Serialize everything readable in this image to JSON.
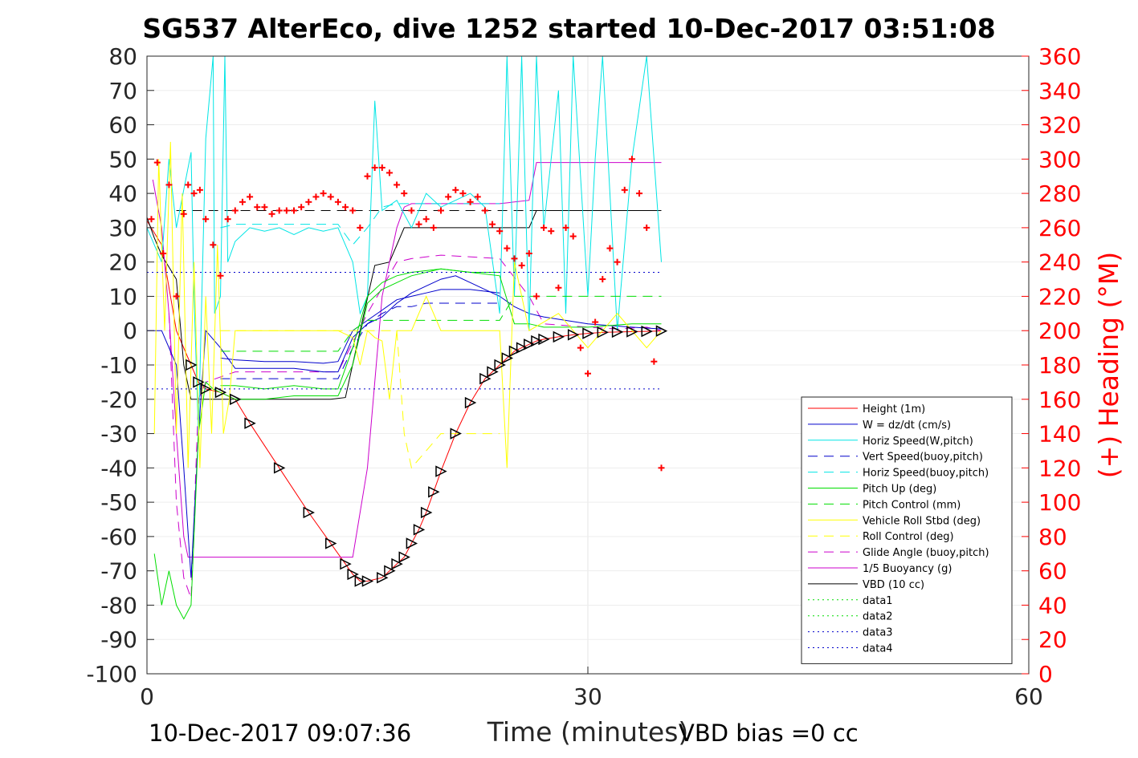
{
  "title": "SG537 AlterEco, dive 1252 started 10-Dec-2017 03:51:08",
  "footer": {
    "left_timestamp": "10-Dec-2017 09:07:36",
    "vbd_bias": "VBD bias =0 cc"
  },
  "chart_data": {
    "type": "line",
    "xlabel": "Time (minutes)",
    "ylabel": "",
    "y2label": "(+) Heading (°M)",
    "xlim": [
      0,
      60
    ],
    "ylim": [
      -100,
      80
    ],
    "y2lim": [
      0,
      360
    ],
    "x_ticks": [
      "0",
      "30",
      "60"
    ],
    "y_ticks": [
      "80",
      "70",
      "60",
      "50",
      "40",
      "30",
      "20",
      "10",
      "0",
      "-10",
      "-20",
      "-30",
      "-40",
      "-50",
      "-60",
      "-70",
      "-80",
      "-90",
      "-100"
    ],
    "y2_ticks": [
      "360",
      "340",
      "320",
      "300",
      "280",
      "260",
      "240",
      "220",
      "200",
      "180",
      "160",
      "140",
      "120",
      "100",
      "80",
      "60",
      "40",
      "20",
      "0"
    ],
    "grid": true,
    "legend_position": "lower-right",
    "colors": {
      "height": "#ff0000",
      "w": "#0000cc",
      "horiz_speed": "#00e5e5",
      "pitch": "#00dd00",
      "roll": "#ffff00",
      "glide": "#cc00cc",
      "vbd": "#000000",
      "heading": "#ff0000"
    },
    "legend": [
      {
        "label": "Height (1m)",
        "color": "#ff0000",
        "dash": "solid"
      },
      {
        "label": "W = dz/dt (cm/s)",
        "color": "#0000cc",
        "dash": "solid"
      },
      {
        "label": "Horiz Speed(W,pitch)",
        "color": "#00e5e5",
        "dash": "solid"
      },
      {
        "label": "Vert Speed(buoy,pitch)",
        "color": "#0000cc",
        "dash": "dashed"
      },
      {
        "label": "Horiz Speed(buoy,pitch)",
        "color": "#00e5e5",
        "dash": "dashed"
      },
      {
        "label": "Pitch Up (deg)",
        "color": "#00dd00",
        "dash": "solid"
      },
      {
        "label": "Pitch Control (mm)",
        "color": "#00dd00",
        "dash": "dashed"
      },
      {
        "label": "Vehicle Roll Stbd (deg)",
        "color": "#ffff00",
        "dash": "solid"
      },
      {
        "label": "Roll Control (deg)",
        "color": "#ffff00",
        "dash": "dashed"
      },
      {
        "label": "Glide Angle (buoy,pitch)",
        "color": "#cc00cc",
        "dash": "dashed"
      },
      {
        "label": "1/5 Buoyancy (g)",
        "color": "#cc00cc",
        "dash": "solid"
      },
      {
        "label": "VBD (10 cc)",
        "color": "#000000",
        "dash": "solid"
      },
      {
        "label": "data1",
        "color": "#00dd00",
        "dash": "dotted"
      },
      {
        "label": "data2",
        "color": "#00dd00",
        "dash": "dotted"
      },
      {
        "label": "data3",
        "color": "#0000cc",
        "dash": "dotted"
      },
      {
        "label": "data4",
        "color": "#0000cc",
        "dash": "dotted"
      }
    ],
    "series": [
      {
        "key": "height",
        "color": "#ff0000",
        "dash": "solid",
        "width": 1,
        "x": [
          0,
          1,
          2,
          3,
          3.5,
          4,
          5,
          6,
          7,
          9,
          11,
          12.5,
          13.5,
          14,
          14.5,
          15,
          16,
          16.5,
          17,
          17.5,
          18,
          18.5,
          19,
          19.5,
          20,
          21,
          22,
          23,
          23.5,
          24,
          24.5,
          25,
          25.5,
          26,
          26.5,
          27,
          28,
          29,
          30,
          31,
          32,
          33,
          34,
          35
        ],
        "y": [
          32,
          25,
          0,
          -10,
          -15,
          -17,
          -18,
          -20,
          -27,
          -40,
          -53,
          -62,
          -68,
          -71,
          -73,
          -73,
          -72,
          -70,
          -68,
          -66,
          -62,
          -58,
          -53,
          -47,
          -41,
          -30,
          -21,
          -14,
          -12,
          -10,
          -8,
          -6,
          -5,
          -4,
          -3,
          -2.5,
          -1.8,
          -1.2,
          -0.8,
          -0.5,
          -0.4,
          -0.3,
          -0.2,
          -0.1
        ]
      },
      {
        "key": "vbd",
        "color": "#000000",
        "dash": "solid",
        "width": 1,
        "x": [
          0,
          0.5,
          1,
          2,
          2.5,
          3,
          7,
          12.5,
          13.5,
          14.5,
          15.5,
          16.5,
          17.5,
          20,
          24,
          26,
          26.5,
          30,
          35
        ],
        "y": [
          33,
          27,
          22,
          15,
          -10,
          -20,
          -20,
          -20,
          -19.5,
          0,
          19,
          20,
          30,
          30,
          30,
          30,
          35,
          35,
          35
        ]
      },
      {
        "key": "vbd_dashed",
        "color": "#000000",
        "dash": "dashed",
        "width": 1,
        "x": [
          2,
          35
        ],
        "y": [
          35,
          35
        ]
      },
      {
        "key": "buoyancy",
        "color": "#cc00cc",
        "dash": "solid",
        "width": 1,
        "x": [
          0.4,
          1,
          1.5,
          2,
          2.5,
          2.8,
          3,
          7,
          13,
          14,
          15,
          16,
          17,
          17.5,
          18,
          24,
          26,
          26.5,
          27,
          30,
          35
        ],
        "y": [
          44,
          30,
          5,
          -30,
          -60,
          -66,
          -66,
          -66,
          -66,
          -66,
          -40,
          10,
          30,
          36,
          37,
          37,
          38,
          49,
          49,
          49,
          49
        ]
      },
      {
        "key": "glide_angle",
        "color": "#cc00cc",
        "dash": "dashed",
        "width": 1,
        "x": [
          1.5,
          2,
          2.5,
          3,
          3.5,
          4,
          6,
          12,
          13,
          15,
          17,
          18,
          20,
          24,
          26,
          27,
          30,
          32,
          34,
          35
        ],
        "y": [
          5,
          -50,
          -72,
          -78,
          -20,
          -15,
          -12,
          -12,
          -12,
          5,
          20,
          21,
          22,
          21,
          10,
          2,
          1,
          0.5,
          1,
          0
        ]
      },
      {
        "key": "w",
        "color": "#0000cc",
        "dash": "solid",
        "width": 1,
        "x": [
          0,
          1,
          2,
          2.5,
          3,
          3.5,
          4,
          5,
          6,
          8,
          10,
          12,
          13,
          14,
          15,
          16,
          17,
          18,
          19,
          20,
          21,
          22,
          23,
          24,
          25,
          26,
          27,
          30,
          33,
          35
        ],
        "y": [
          0,
          0,
          -10,
          -40,
          -72,
          -30,
          0,
          -5,
          -11,
          -11,
          -11,
          -12,
          -12,
          -2,
          2,
          4,
          8,
          11,
          13,
          15,
          16,
          14,
          12,
          10,
          7,
          5,
          4,
          2,
          1,
          0.5
        ]
      },
      {
        "key": "w_b",
        "color": "#0000cc",
        "dash": "solid",
        "width": 1,
        "x": [
          5,
          6,
          8,
          10,
          12,
          13,
          14,
          15,
          16,
          17,
          18,
          19,
          20,
          22,
          24
        ],
        "y": [
          -8,
          -8.5,
          -9,
          -9,
          -9.5,
          -9,
          0,
          3,
          6,
          9,
          10,
          11,
          12,
          12,
          11
        ]
      },
      {
        "key": "vert_speed_buoy",
        "color": "#0000cc",
        "dash": "dashed",
        "width": 1,
        "x": [
          5,
          6,
          8,
          10,
          12,
          13,
          14,
          15,
          16,
          17,
          18,
          19,
          20,
          22,
          24
        ],
        "y": [
          -14,
          -14,
          -14,
          -14,
          -14,
          -14,
          -5,
          2,
          5,
          7,
          7,
          8,
          8,
          8,
          8
        ]
      },
      {
        "key": "horiz_speed",
        "color": "#00e5e5",
        "dash": "solid",
        "width": 1,
        "x": [
          0,
          1,
          1.5,
          2,
          3,
          3.2,
          3.5,
          4,
          4.5,
          4.6,
          5,
          5.3,
          5.5,
          6,
          7,
          8,
          9,
          10,
          11,
          12,
          13,
          14,
          14.5,
          15,
          15.5,
          16,
          17,
          18,
          19,
          20,
          21,
          22,
          23,
          24,
          24.5,
          25,
          25.5,
          26,
          26.5,
          27,
          28,
          28.5,
          29,
          30,
          30.5,
          31,
          32,
          33,
          34,
          35
        ],
        "y": [
          30,
          20,
          50,
          30,
          52,
          10,
          -30,
          56,
          80,
          5,
          10,
          80,
          20,
          26,
          30,
          29,
          30,
          28,
          30,
          29,
          30,
          20,
          5,
          10,
          67,
          35,
          38,
          30,
          40,
          36,
          38,
          40,
          36,
          5,
          80,
          10,
          80,
          0,
          80,
          30,
          70,
          5,
          80,
          10,
          50,
          80,
          0,
          50,
          80,
          20
        ]
      },
      {
        "key": "horiz_speed_buoy",
        "color": "#00e5e5",
        "dash": "dashed",
        "width": 1,
        "x": [
          5,
          6,
          8,
          10,
          12,
          13,
          14,
          15,
          16,
          17,
          18,
          20,
          22,
          24
        ],
        "y": [
          30,
          31,
          31,
          31,
          31,
          31,
          25,
          30,
          36,
          37,
          37,
          37,
          37,
          37
        ]
      },
      {
        "key": "pitch_up",
        "color": "#00dd00",
        "dash": "solid",
        "width": 1,
        "x": [
          0.5,
          1,
          1.5,
          2,
          2.5,
          3,
          3.5,
          4,
          4.5,
          5,
          6,
          8,
          10,
          12,
          13,
          14,
          15,
          16,
          17,
          18,
          20,
          22,
          24,
          25,
          26,
          27,
          30,
          33,
          35
        ],
        "y": [
          -65,
          -80,
          -70,
          -80,
          -84,
          -80,
          -30,
          -15,
          -17,
          -18,
          -20,
          -20,
          -19,
          -19,
          -19,
          -10,
          8,
          12,
          14,
          16,
          18,
          17,
          16,
          2,
          2,
          1,
          1,
          2,
          2
        ]
      },
      {
        "key": "pitch_up_b",
        "color": "#00dd00",
        "dash": "solid",
        "width": 1,
        "x": [
          5,
          6,
          8,
          10,
          12,
          13,
          14,
          15,
          16,
          17,
          18,
          20,
          22,
          24
        ],
        "y": [
          -16,
          -16,
          -17,
          -16,
          -17,
          -17,
          -5,
          10,
          14,
          16,
          17,
          18,
          17,
          17
        ]
      },
      {
        "key": "pitch_control",
        "color": "#00dd00",
        "dash": "dashed",
        "width": 1,
        "x": [
          5,
          6,
          8,
          10,
          12,
          13,
          14,
          15,
          16,
          17,
          18,
          20,
          22,
          24,
          25,
          30,
          35
        ],
        "y": [
          -6,
          -6,
          -6,
          -6,
          -6,
          -6,
          0,
          3,
          3,
          3,
          3,
          3,
          3,
          3,
          10,
          10,
          10
        ]
      },
      {
        "key": "roll",
        "color": "#ffff00",
        "dash": "solid",
        "width": 1,
        "x": [
          0.5,
          0.8,
          1.2,
          1.6,
          2,
          2.4,
          2.8,
          3.2,
          3.6,
          4,
          4.4,
          4.8,
          5.2,
          5.6,
          6,
          8,
          10,
          12,
          13,
          14,
          14.5,
          15,
          15.5,
          16,
          16.5,
          17,
          18,
          19,
          20,
          22,
          24,
          24.5,
          25,
          26,
          28,
          30,
          32,
          34,
          35
        ],
        "y": [
          -30,
          50,
          0,
          55,
          -30,
          40,
          -40,
          20,
          -40,
          10,
          -30,
          25,
          -30,
          -20,
          0,
          0,
          0,
          0,
          0,
          -2,
          -10,
          0,
          -2,
          -3,
          -20,
          0,
          0,
          10,
          0,
          0,
          0,
          -40,
          20,
          0,
          5,
          -5,
          5,
          -5,
          0
        ]
      },
      {
        "key": "roll_control",
        "color": "#ffff00",
        "dash": "dashed",
        "width": 1,
        "x": [
          5,
          6,
          8,
          10,
          12,
          13,
          17,
          17.5,
          18,
          20,
          24
        ],
        "y": [
          0,
          0,
          0,
          0,
          0,
          0,
          0,
          -30,
          -40,
          -30,
          -30
        ]
      },
      {
        "key": "data_upper",
        "color": "#0000cc",
        "dash": "dotted",
        "width": 1,
        "x": [
          0,
          35
        ],
        "y": [
          17,
          17
        ]
      },
      {
        "key": "data_lower",
        "color": "#0000cc",
        "dash": "dotted",
        "width": 1,
        "x": [
          0,
          35
        ],
        "y": [
          -17,
          -17
        ]
      }
    ],
    "heading": {
      "axis": "right",
      "color": "#ff0000",
      "marker": "+",
      "x": [
        0.3,
        0.7,
        1.1,
        1.5,
        2,
        2.5,
        2.8,
        3.2,
        3.6,
        4,
        4.5,
        5,
        5.5,
        6,
        6.5,
        7,
        7.5,
        8,
        8.5,
        9,
        9.5,
        10,
        10.5,
        11,
        11.5,
        12,
        12.5,
        13,
        13.5,
        14,
        14.5,
        15,
        15.5,
        16,
        16.5,
        17,
        17.5,
        18,
        18.5,
        19,
        19.5,
        20,
        20.5,
        21,
        21.5,
        22,
        22.5,
        23,
        23.5,
        24,
        24.5,
        25,
        25.5,
        26,
        26.5,
        27,
        27.5,
        28,
        28.5,
        29,
        29.5,
        30,
        30.5,
        31,
        31.5,
        32,
        32.5,
        33,
        33.5,
        34,
        34.5,
        35
      ],
      "y": [
        265,
        298,
        245,
        285,
        220,
        268,
        285,
        280,
        282,
        265,
        250,
        232,
        265,
        270,
        275,
        278,
        272,
        272,
        268,
        270,
        270,
        270,
        272,
        275,
        278,
        280,
        278,
        275,
        272,
        270,
        260,
        290,
        295,
        295,
        292,
        285,
        280,
        270,
        262,
        265,
        260,
        270,
        278,
        282,
        280,
        275,
        278,
        270,
        262,
        258,
        248,
        242,
        238,
        245,
        220,
        260,
        258,
        225,
        260,
        255,
        190,
        175,
        205,
        230,
        248,
        240,
        282,
        300,
        280,
        260,
        182,
        120
      ]
    }
  }
}
